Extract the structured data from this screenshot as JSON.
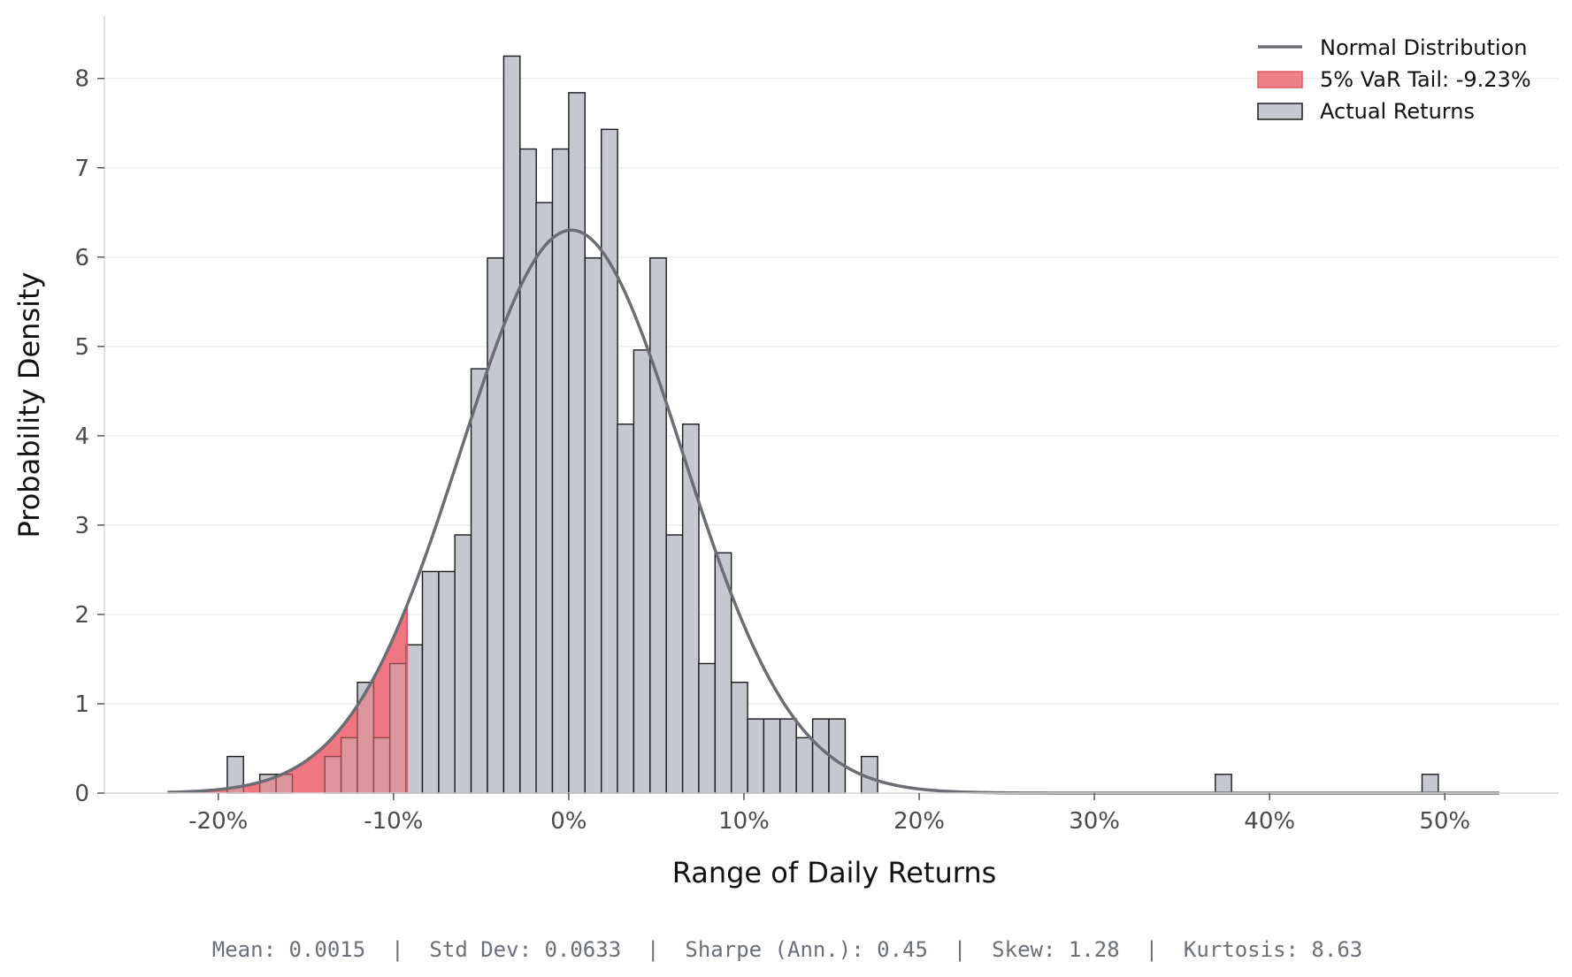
{
  "chart_data": {
    "type": "bar",
    "xlabel": "Range of Daily Returns",
    "ylabel": "Probability Density",
    "xlim": [
      -0.265,
      0.565
    ],
    "ylim": [
      0,
      8.7
    ],
    "x_ticks": [
      -0.2,
      -0.1,
      0,
      0.1,
      0.2,
      0.3,
      0.4,
      0.5
    ],
    "x_tick_labels": [
      "-20%",
      "-10%",
      "0%",
      "10%",
      "20%",
      "30%",
      "40%",
      "50%"
    ],
    "y_ticks": [
      0,
      1,
      2,
      3,
      4,
      5,
      6,
      7,
      8
    ],
    "y_tick_labels": [
      "0",
      "1",
      "2",
      "3",
      "4",
      "5",
      "6",
      "7",
      "8"
    ],
    "grid": "horizontal",
    "legend_position": "top-right",
    "bin_width": 0.00928,
    "histogram": {
      "name": "Actual Returns",
      "color": "#c5c8ce",
      "edge_color": "#1a1a1a",
      "bins": [
        {
          "left": -0.1949,
          "density": 0.41
        },
        {
          "left": -0.1763,
          "density": 0.21
        },
        {
          "left": -0.167,
          "density": 0.21
        },
        {
          "left": -0.1392,
          "density": 0.41
        },
        {
          "left": -0.1299,
          "density": 0.62
        },
        {
          "left": -0.1206,
          "density": 1.24
        },
        {
          "left": -0.1113,
          "density": 0.62
        },
        {
          "left": -0.1021,
          "density": 1.45
        },
        {
          "left": -0.0928,
          "density": 1.66
        },
        {
          "left": -0.0835,
          "density": 2.48
        },
        {
          "left": -0.0742,
          "density": 2.48
        },
        {
          "left": -0.065,
          "density": 2.89
        },
        {
          "left": -0.0557,
          "density": 4.75
        },
        {
          "left": -0.0464,
          "density": 5.99
        },
        {
          "left": -0.0371,
          "density": 8.25
        },
        {
          "left": -0.0278,
          "density": 7.21
        },
        {
          "left": -0.0186,
          "density": 6.61
        },
        {
          "left": -0.0093,
          "density": 7.21
        },
        {
          "left": 0.0,
          "density": 7.84
        },
        {
          "left": 0.0093,
          "density": 5.99
        },
        {
          "left": 0.0186,
          "density": 7.43
        },
        {
          "left": 0.0278,
          "density": 4.13
        },
        {
          "left": 0.0371,
          "density": 4.96
        },
        {
          "left": 0.0464,
          "density": 5.99
        },
        {
          "left": 0.0557,
          "density": 2.89
        },
        {
          "left": 0.065,
          "density": 4.13
        },
        {
          "left": 0.0742,
          "density": 1.45
        },
        {
          "left": 0.0835,
          "density": 2.69
        },
        {
          "left": 0.0928,
          "density": 1.24
        },
        {
          "left": 0.1021,
          "density": 0.83
        },
        {
          "left": 0.1113,
          "density": 0.83
        },
        {
          "left": 0.1206,
          "density": 0.83
        },
        {
          "left": 0.1299,
          "density": 0.62
        },
        {
          "left": 0.1392,
          "density": 0.83
        },
        {
          "left": 0.1485,
          "density": 0.83
        },
        {
          "left": 0.167,
          "density": 0.41
        },
        {
          "left": 0.369,
          "density": 0.21
        },
        {
          "left": 0.487,
          "density": 0.21
        }
      ]
    },
    "normal_curve": {
      "name": "Normal Distribution",
      "color": "#6b6d73",
      "mean": 0.0015,
      "std": 0.0633,
      "x_range": [
        -0.229,
        0.531
      ]
    },
    "var_tail": {
      "name": "5% VaR Tail: -9.23%",
      "color": "#ef6a74",
      "threshold": -0.0923,
      "x_start": -0.229
    },
    "legend": [
      "Normal Distribution",
      "5% VaR Tail: -9.23%",
      "Actual Returns"
    ],
    "stats_line": "Mean: 0.0015  |  Std Dev: 0.0633  |  Sharpe (Ann.): 0.45  |  Skew: 1.28  |  Kurtosis: 8.63"
  }
}
